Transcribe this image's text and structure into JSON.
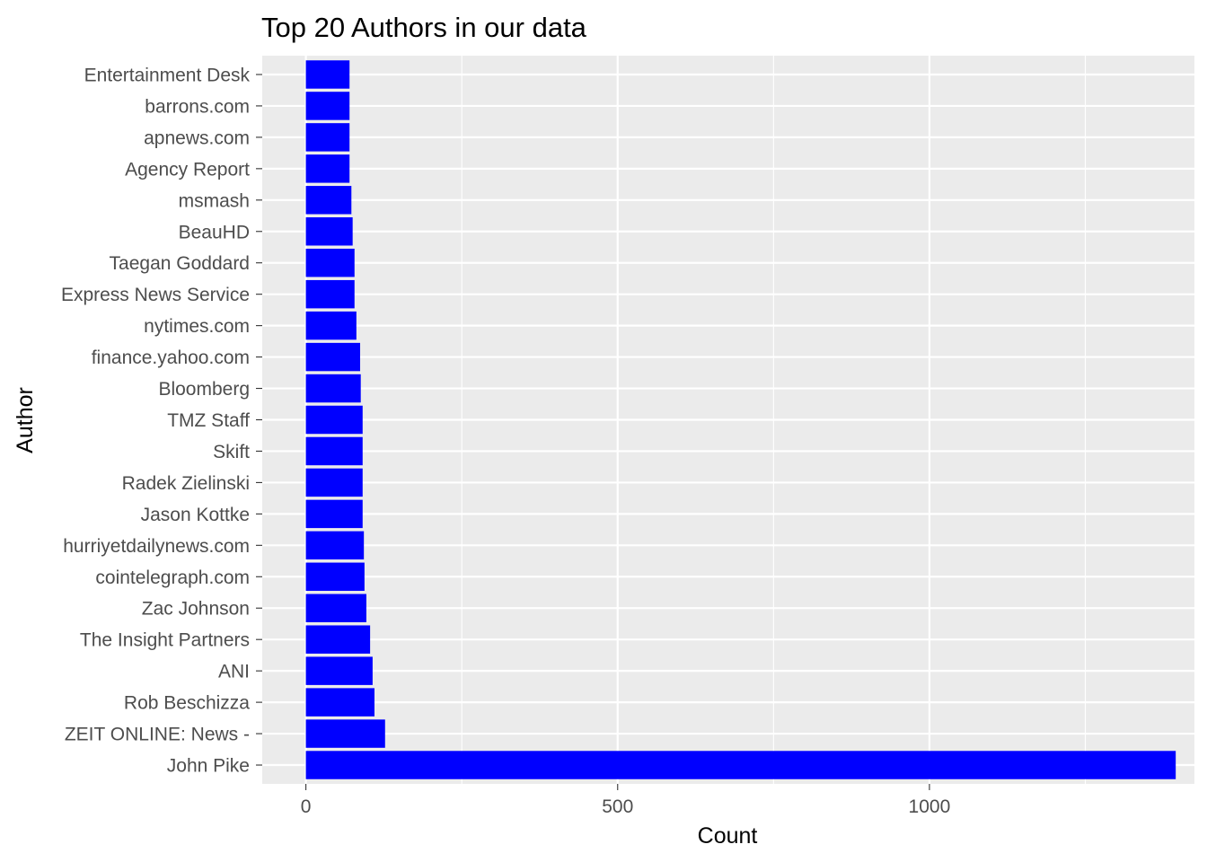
{
  "chart_data": {
    "type": "bar",
    "orientation": "horizontal",
    "title": "Top 20 Authors in our data",
    "xlabel": "Count",
    "ylabel": "Author",
    "xlim": [
      -70,
      1425
    ],
    "xticks": [
      0,
      500,
      1000
    ],
    "xtick_labels": [
      "0",
      "500",
      "1000"
    ],
    "grid": true,
    "bar_color": "#0000FF",
    "panel_color": "#EBEBEB",
    "grid_color": "#FFFFFF",
    "categories": [
      "John Pike",
      "ZEIT ONLINE: News -",
      "Rob Beschizza",
      "ANI",
      "The Insight Partners",
      "Zac Johnson",
      "cointelegraph.com",
      "hurriyetdailynews.com",
      "Jason Kottke",
      "Radek Zielinski",
      "Skift",
      "TMZ Staff",
      "Bloomberg",
      "finance.yahoo.com",
      "nytimes.com",
      "Express News Service",
      "Taegan Goddard",
      "BeauHD",
      "msmash",
      "Agency Report",
      "apnews.com",
      "barrons.com",
      "Entertainment Desk"
    ],
    "values": [
      1395,
      127,
      110,
      107,
      103,
      97,
      94,
      93,
      91,
      91,
      91,
      91,
      88,
      87,
      81,
      78,
      78,
      75,
      73,
      70,
      70,
      70,
      70
    ]
  }
}
